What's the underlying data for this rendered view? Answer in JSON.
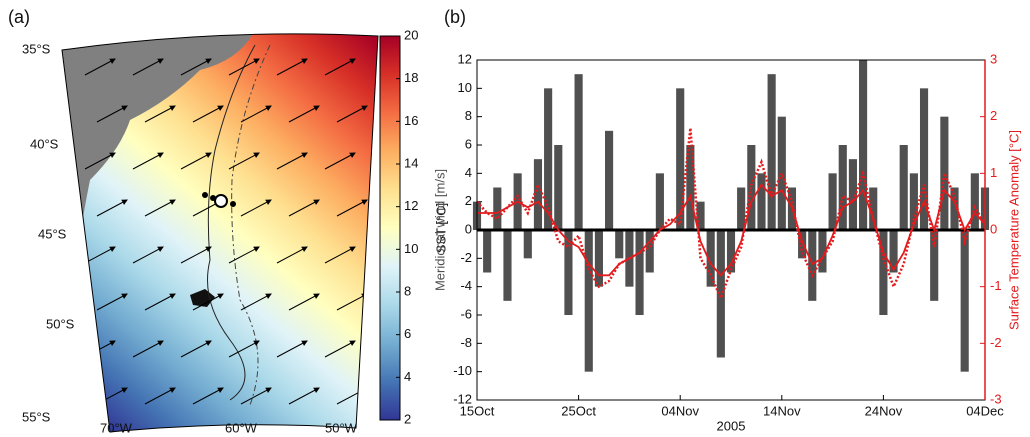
{
  "chart_data": [
    {
      "type": "map",
      "panel_label": "(a)",
      "lat_labels": [
        "35°S",
        "40°S",
        "45°S",
        "50°S",
        "55°S"
      ],
      "lon_labels": [
        "70°W",
        "60°W",
        "50°W"
      ],
      "colorbar_label": "SST [°C]",
      "clim": [
        2,
        20
      ],
      "cticks": [
        2,
        4,
        6,
        8,
        10,
        12,
        14,
        16,
        18,
        20
      ],
      "colormap": [
        "#313695",
        "#4575b4",
        "#74add1",
        "#abd9e9",
        "#e0f3f8",
        "#ffffbf",
        "#fee090",
        "#fdae61",
        "#f46d43",
        "#d73027",
        "#a50026"
      ]
    },
    {
      "type": "timeseries",
      "panel_label": "(b)",
      "xlabel": "2005",
      "ylabel": "Meridional wind [m/s]",
      "y2label": "Surface Temperature Anomaly [°C]",
      "xlim": [
        0,
        50
      ],
      "xticks": [
        {
          "value": 0,
          "label": "15Oct"
        },
        {
          "value": 10,
          "label": "25Oct"
        },
        {
          "value": 20,
          "label": "04Nov"
        },
        {
          "value": 30,
          "label": "14Nov"
        },
        {
          "value": 40,
          "label": "24Nov"
        },
        {
          "value": 50,
          "label": "04Dec"
        }
      ],
      "ylim": [
        -12,
        12
      ],
      "yticks": [
        -12,
        -10,
        -8,
        -6,
        -4,
        -2,
        0,
        2,
        4,
        6,
        8,
        10,
        12
      ],
      "y2lim": [
        -3,
        3
      ],
      "y2ticks": [
        -3,
        -2,
        -1,
        0,
        1,
        2,
        3
      ],
      "x": [
        0,
        1,
        2,
        3,
        4,
        5,
        6,
        7,
        8,
        9,
        10,
        11,
        12,
        13,
        14,
        15,
        16,
        17,
        18,
        19,
        20,
        21,
        22,
        23,
        24,
        25,
        26,
        27,
        28,
        29,
        30,
        31,
        32,
        33,
        34,
        35,
        36,
        37,
        38,
        39,
        40,
        41,
        42,
        43,
        44,
        45,
        46,
        47,
        48,
        49,
        50
      ],
      "series": [
        {
          "style": "bar",
          "color": "#505050",
          "values": [
            2,
            -3,
            3,
            -5,
            4,
            -2,
            5,
            10,
            6,
            -6,
            11,
            -10,
            -4,
            7,
            -2,
            -4,
            -6,
            -3,
            4,
            0,
            10,
            6,
            2,
            -4,
            -9,
            -3,
            3,
            6,
            4,
            11,
            8,
            3,
            -2,
            -5,
            -3,
            4,
            6,
            5,
            12,
            3,
            -6,
            -3,
            6,
            4,
            10,
            -5,
            8,
            3,
            -10,
            4,
            3
          ]
        },
        {
          "style": "dotted",
          "axis": "y2",
          "color": "#e41a1c",
          "values": [
            0.5,
            0.3,
            0.2,
            0.4,
            0.6,
            0.3,
            0.8,
            0.4,
            -0.2,
            -0.3,
            -0.1,
            -0.7,
            -1.0,
            -0.9,
            -0.6,
            -0.5,
            -0.4,
            -0.3,
            0,
            0.2,
            0.1,
            1.8,
            -0.5,
            -0.8,
            -1.2,
            -0.7,
            -0.3,
            0.8,
            1.2,
            0.6,
            1.0,
            0.5,
            -0.4,
            -0.8,
            -0.5,
            -0.2,
            0.6,
            0.5,
            1.0,
            0.2,
            -0.5,
            -1.0,
            -0.6,
            0.2,
            0.8,
            -0.3,
            1.0,
            0.6,
            -0.2,
            0.4,
            0.1
          ]
        },
        {
          "style": "solid",
          "axis": "y2",
          "color": "#e41a1c",
          "values": [
            0.3,
            0.3,
            0.3,
            0.4,
            0.5,
            0.4,
            0.5,
            0.3,
            0,
            -0.2,
            -0.3,
            -0.6,
            -0.8,
            -0.8,
            -0.6,
            -0.5,
            -0.4,
            -0.2,
            0,
            0.1,
            0.3,
            0.6,
            -0.2,
            -0.6,
            -0.8,
            -0.6,
            -0.2,
            0.5,
            0.8,
            0.6,
            0.7,
            0.4,
            -0.2,
            -0.6,
            -0.5,
            -0.1,
            0.4,
            0.5,
            0.7,
            0.2,
            -0.4,
            -0.7,
            -0.4,
            0.1,
            0.5,
            0,
            0.7,
            0.5,
            0,
            0.3,
            0.1
          ]
        }
      ]
    }
  ]
}
